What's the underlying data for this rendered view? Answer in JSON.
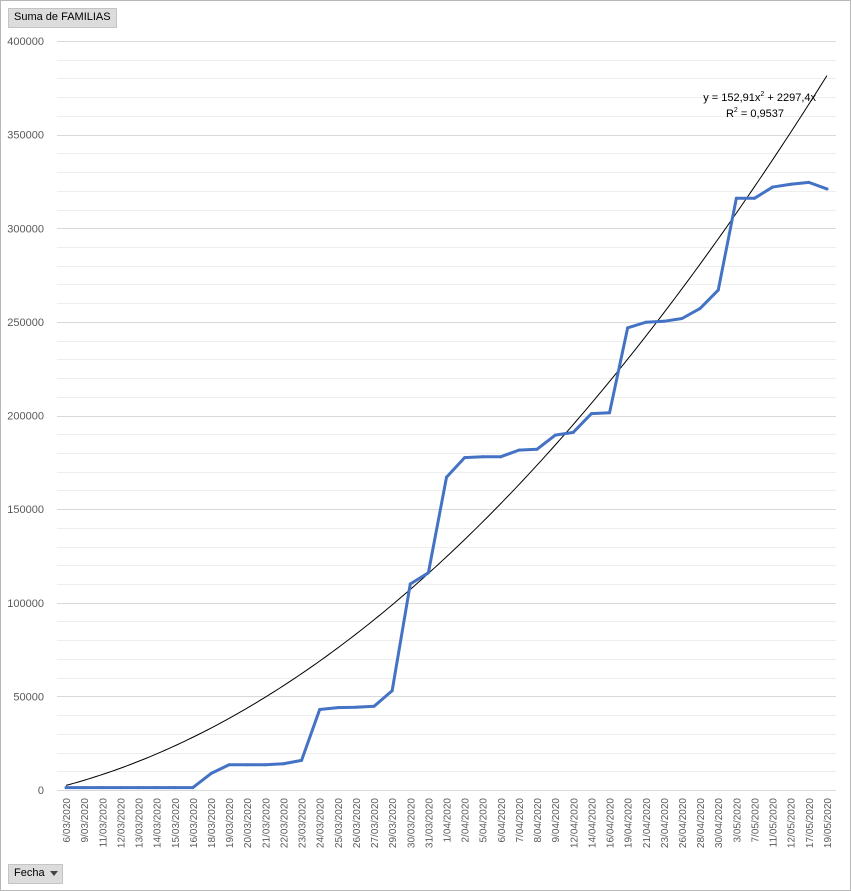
{
  "pivot": {
    "values_field_label": "Suma de FAMILIAS",
    "axis_field_label": "Fecha"
  },
  "trendline": {
    "equation_prefix": "y = 152,91x",
    "equation_sup": "2",
    "equation_suffix": " + 2297,4x",
    "r2_prefix": "R",
    "r2_sup": "2",
    "r2_suffix": " = 0,9537"
  },
  "colors": {
    "series": "#4472c4",
    "trendline": "#000000",
    "gridline": "#d9d9d9"
  },
  "chart_data": {
    "type": "line",
    "title": "",
    "xlabel": "Fecha",
    "ylabel": "",
    "ylim": [
      0,
      400000
    ],
    "ytick_step": 50000,
    "grid": true,
    "categories": [
      "6/03/2020",
      "9/03/2020",
      "11/03/2020",
      "12/03/2020",
      "13/03/2020",
      "14/03/2020",
      "15/03/2020",
      "16/03/2020",
      "18/03/2020",
      "19/03/2020",
      "20/03/2020",
      "21/03/2020",
      "22/03/2020",
      "23/03/2020",
      "24/03/2020",
      "25/03/2020",
      "26/03/2020",
      "27/03/2020",
      "29/03/2020",
      "30/03/2020",
      "31/03/2020",
      "1/04/2020",
      "2/04/2020",
      "5/04/2020",
      "6/04/2020",
      "7/04/2020",
      "8/04/2020",
      "9/04/2020",
      "12/04/2020",
      "14/04/2020",
      "16/04/2020",
      "19/04/2020",
      "21/04/2020",
      "23/04/2020",
      "26/04/2020",
      "28/04/2020",
      "30/04/2020",
      "3/05/2020",
      "7/05/2020",
      "11/05/2020",
      "12/05/2020",
      "17/05/2020",
      "19/05/2020"
    ],
    "series": [
      {
        "values": [
          1300,
          1300,
          1300,
          1300,
          1300,
          1300,
          1300,
          1300,
          8800,
          13500,
          13500,
          13500,
          14000,
          15800,
          43000,
          44000,
          44200,
          44700,
          53000,
          110000,
          116000,
          167000,
          177500,
          178000,
          178000,
          181500,
          182000,
          189500,
          191000,
          201000,
          201500,
          246800,
          249800,
          250300,
          251800,
          257200,
          267000,
          316000,
          316000,
          322000,
          323500,
          324500,
          321000
        ]
      }
    ],
    "trendline": {
      "type": "polynomial",
      "coefficients": [
        152.91,
        2297.4,
        0
      ],
      "r2": 0.9537
    }
  }
}
